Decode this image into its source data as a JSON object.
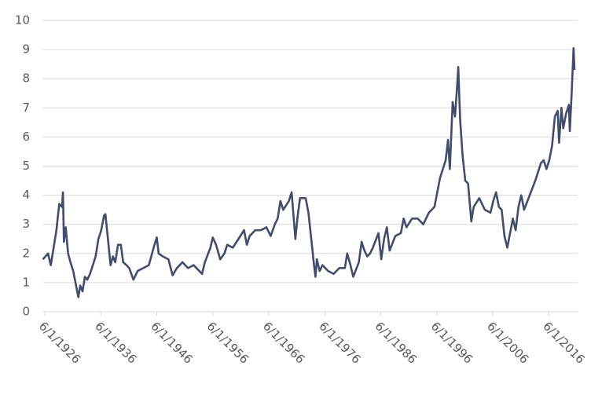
{
  "chart_data": {
    "type": "line",
    "x": [
      "1926-02-01",
      "1927-01-01",
      "1927-07-01",
      "1928-01-01",
      "1928-07-01",
      "1929-01-01",
      "1929-07-01",
      "1929-09-01",
      "1929-11-01",
      "1930-03-01",
      "1930-08-01",
      "1931-01-01",
      "1931-07-01",
      "1932-01-01",
      "1932-06-01",
      "1932-10-01",
      "1933-03-01",
      "1933-08-01",
      "1934-01-01",
      "1934-07-01",
      "1935-01-01",
      "1935-07-01",
      "1936-01-01",
      "1936-07-01",
      "1937-01-01",
      "1937-04-01",
      "1937-10-01",
      "1938-03-01",
      "1938-08-01",
      "1939-01-01",
      "1939-07-01",
      "1940-01-01",
      "1940-06-01",
      "1941-01-01",
      "1941-07-01",
      "1942-04-01",
      "1943-01-01",
      "1944-01-01",
      "1945-01-01",
      "1946-01-01",
      "1946-06-01",
      "1946-10-01",
      "1947-07-01",
      "1948-07-01",
      "1949-04-01",
      "1950-01-01",
      "1951-01-01",
      "1952-01-01",
      "1953-01-01",
      "1954-01-01",
      "1954-07-01",
      "1955-01-01",
      "1956-01-01",
      "1956-06-01",
      "1957-01-01",
      "1957-10-01",
      "1958-07-01",
      "1959-01-01",
      "1960-01-01",
      "1961-01-01",
      "1962-01-01",
      "1962-07-01",
      "1963-01-01",
      "1964-01-01",
      "1965-01-01",
      "1966-01-01",
      "1966-10-01",
      "1967-07-01",
      "1968-01-01",
      "1968-07-01",
      "1969-01-01",
      "1970-01-01",
      "1970-07-01",
      "1970-10-01",
      "1971-03-01",
      "1971-08-01",
      "1972-01-01",
      "1973-01-01",
      "1973-07-01",
      "1974-01-01",
      "1974-07-01",
      "1974-10-01",
      "1975-01-01",
      "1975-07-01",
      "1976-01-01",
      "1977-01-01",
      "1978-01-01",
      "1979-01-01",
      "1980-01-01",
      "1980-06-01",
      "1981-01-01",
      "1981-07-01",
      "1982-07-01",
      "1983-01-01",
      "1983-07-01",
      "1984-01-01",
      "1984-07-01",
      "1985-01-01",
      "1986-01-01",
      "1986-07-01",
      "1987-01-01",
      "1987-07-01",
      "1988-01-01",
      "1989-01-01",
      "1990-01-01",
      "1990-07-01",
      "1991-01-01",
      "1992-01-01",
      "1993-01-01",
      "1994-01-01",
      "1995-01-01",
      "1996-01-01",
      "1996-07-01",
      "1997-01-01",
      "1998-01-01",
      "1998-06-01",
      "1998-10-01",
      "1999-04-01",
      "1999-09-01",
      "2000-01-01",
      "2000-04-01",
      "2000-08-01",
      "2001-01-01",
      "2001-07-01",
      "2002-01-01",
      "2002-08-01",
      "2003-01-01",
      "2004-01-01",
      "2005-01-01",
      "2006-01-01",
      "2006-07-01",
      "2007-01-01",
      "2007-07-01",
      "2008-01-01",
      "2008-07-01",
      "2009-01-01",
      "2009-07-01",
      "2010-01-01",
      "2010-07-01",
      "2011-01-01",
      "2011-07-01",
      "2012-01-01",
      "2013-01-01",
      "2014-01-01",
      "2015-01-01",
      "2015-07-01",
      "2016-01-01",
      "2016-07-01",
      "2017-01-01",
      "2017-07-01",
      "2018-01-01",
      "2018-04-01",
      "2018-09-01",
      "2019-01-01",
      "2019-07-01",
      "2020-01-01",
      "2020-03-01",
      "2020-07-01",
      "2020-11-01",
      "2021-01-01"
    ],
    "series": [
      {
        "color": "#414d6e",
        "values": [
          1.8,
          2.0,
          1.6,
          2.2,
          2.8,
          3.7,
          3.6,
          4.1,
          2.4,
          2.9,
          2.0,
          1.7,
          1.4,
          0.9,
          0.5,
          0.9,
          0.7,
          1.2,
          1.1,
          1.3,
          1.6,
          1.9,
          2.5,
          2.8,
          3.3,
          3.35,
          2.4,
          1.6,
          1.9,
          1.7,
          2.3,
          2.3,
          1.7,
          1.6,
          1.5,
          1.1,
          1.4,
          1.5,
          1.6,
          2.3,
          2.55,
          2.0,
          1.9,
          1.8,
          1.25,
          1.5,
          1.7,
          1.5,
          1.6,
          1.4,
          1.3,
          1.7,
          2.2,
          2.55,
          2.3,
          1.8,
          2.0,
          2.3,
          2.2,
          2.5,
          2.8,
          2.3,
          2.6,
          2.8,
          2.8,
          2.9,
          2.6,
          3.0,
          3.2,
          3.8,
          3.5,
          3.8,
          4.1,
          3.5,
          2.5,
          3.3,
          3.9,
          3.9,
          3.4,
          2.5,
          1.6,
          1.2,
          1.8,
          1.4,
          1.6,
          1.4,
          1.3,
          1.5,
          1.5,
          2.0,
          1.6,
          1.2,
          1.7,
          2.4,
          2.1,
          1.9,
          2.0,
          2.2,
          2.7,
          1.8,
          2.5,
          2.9,
          2.1,
          2.6,
          2.7,
          3.2,
          2.9,
          3.2,
          3.2,
          3.0,
          3.4,
          3.6,
          4.1,
          4.6,
          5.2,
          5.9,
          4.9,
          7.2,
          6.7,
          7.6,
          8.4,
          6.6,
          5.4,
          4.5,
          4.4,
          3.1,
          3.6,
          3.9,
          3.5,
          3.4,
          3.8,
          4.1,
          3.6,
          3.5,
          2.6,
          2.2,
          2.7,
          3.2,
          2.8,
          3.6,
          4.0,
          3.5,
          4.0,
          4.5,
          5.1,
          5.2,
          4.9,
          5.2,
          5.7,
          6.7,
          6.9,
          5.8,
          7.0,
          6.3,
          6.8,
          7.1,
          6.2,
          7.5,
          9.05,
          8.3
        ]
      }
    ],
    "xlim": [
      "1926-01-01",
      "2021-01-01"
    ],
    "xticks": [
      {
        "value": "1926-06-01",
        "label": "6/1/1926"
      },
      {
        "value": "1936-06-01",
        "label": "6/1/1936"
      },
      {
        "value": "1946-06-01",
        "label": "6/1/1946"
      },
      {
        "value": "1956-06-01",
        "label": "6/1/1956"
      },
      {
        "value": "1966-06-01",
        "label": "6/1/1966"
      },
      {
        "value": "1976-06-01",
        "label": "6/1/1976"
      },
      {
        "value": "1986-06-01",
        "label": "6/1/1986"
      },
      {
        "value": "1996-06-01",
        "label": "6/1/1996"
      },
      {
        "value": "2006-06-01",
        "label": "6/1/2006"
      },
      {
        "value": "2016-06-01",
        "label": "6/1/2016"
      }
    ],
    "ylim": [
      0,
      10
    ],
    "yticks": [
      0,
      1,
      2,
      3,
      4,
      5,
      6,
      7,
      8,
      9,
      10
    ],
    "grid": true
  }
}
